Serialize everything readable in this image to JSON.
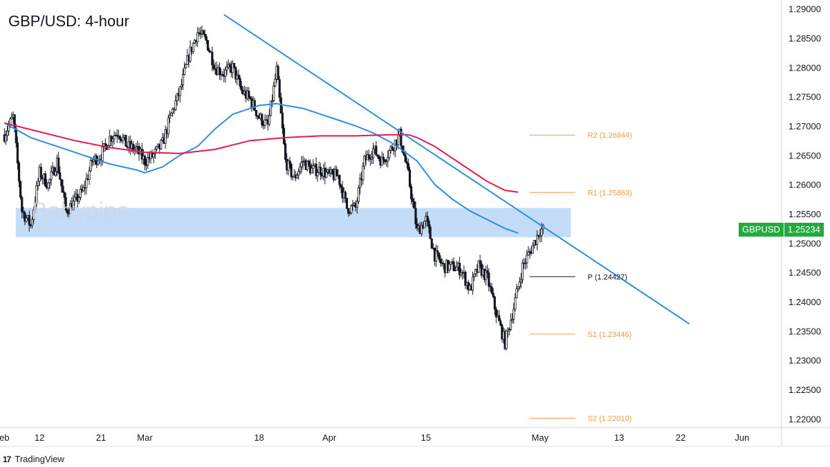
{
  "title": "GBP/USD: 4-hour",
  "watermark": "Babypips",
  "brand": {
    "logo": "17",
    "name": "TradingView"
  },
  "price_tag": {
    "symbol": "GBPUSD",
    "price": "1.25234",
    "color": "#22ab3c"
  },
  "colors": {
    "candle": "#131722",
    "trendline": "#2f8de0",
    "ma_fast": "#2f8de0",
    "ma_slow": "#e8174f",
    "zone": "#b8d6f7",
    "pivot_resistance": "#f39b4c",
    "pivot_support": "#f39b4c",
    "pivot": "#131722"
  },
  "chart_data": {
    "type": "candlestick",
    "title": "GBP/USD: 4-hour",
    "x_unit": "trading day (Feb 8, 2024 = 0)",
    "x_ticks": [
      {
        "x": 0,
        "label": "eb"
      },
      {
        "x": 4,
        "label": "12"
      },
      {
        "x": 11,
        "label": "21"
      },
      {
        "x": 16,
        "label": "Mar"
      },
      {
        "x": 29,
        "label": "18"
      },
      {
        "x": 37,
        "label": "Apr"
      },
      {
        "x": 48,
        "label": "15"
      },
      {
        "x": 61,
        "label": "May"
      },
      {
        "x": 70,
        "label": "13"
      },
      {
        "x": 77,
        "label": "22"
      },
      {
        "x": 84,
        "label": "Jun"
      }
    ],
    "xlim": [
      -0.5,
      88.5
    ],
    "ylim": [
      1.2185,
      1.2915
    ],
    "y_ticks": [
      1.29,
      1.285,
      1.28,
      1.275,
      1.27,
      1.265,
      1.26,
      1.255,
      1.25,
      1.245,
      1.24,
      1.235,
      1.23,
      1.225,
      1.22
    ],
    "candles_close_anchors": [
      [
        0,
        1.2685
      ],
      [
        1,
        1.2715
      ],
      [
        2,
        1.2555
      ],
      [
        3,
        1.253
      ],
      [
        4,
        1.262
      ],
      [
        5,
        1.26
      ],
      [
        6,
        1.264
      ],
      [
        7,
        1.2555
      ],
      [
        8,
        1.257
      ],
      [
        9,
        1.259
      ],
      [
        10,
        1.264
      ],
      [
        11,
        1.265
      ],
      [
        12,
        1.268
      ],
      [
        13,
        1.269
      ],
      [
        14,
        1.2665
      ],
      [
        15,
        1.266
      ],
      [
        16,
        1.264
      ],
      [
        17,
        1.265
      ],
      [
        18,
        1.267
      ],
      [
        19,
        1.272
      ],
      [
        20,
        1.276
      ],
      [
        21,
        1.282
      ],
      [
        22,
        1.286
      ],
      [
        23,
        1.2845
      ],
      [
        24,
        1.28
      ],
      [
        25,
        1.279
      ],
      [
        26,
        1.28
      ],
      [
        27,
        1.276
      ],
      [
        28,
        1.2745
      ],
      [
        29,
        1.2715
      ],
      [
        30,
        1.27
      ],
      [
        31,
        1.2795
      ],
      [
        32,
        1.264
      ],
      [
        33,
        1.261
      ],
      [
        34,
        1.264
      ],
      [
        35,
        1.2625
      ],
      [
        36,
        1.2625
      ],
      [
        37,
        1.2615
      ],
      [
        38,
        1.2615
      ],
      [
        39,
        1.256
      ],
      [
        40,
        1.256
      ],
      [
        41,
        1.264
      ],
      [
        42,
        1.266
      ],
      [
        43,
        1.264
      ],
      [
        44,
        1.266
      ],
      [
        45,
        1.2685
      ],
      [
        46,
        1.2615
      ],
      [
        47,
        1.252
      ],
      [
        48,
        1.254
      ],
      [
        49,
        1.248
      ],
      [
        50,
        1.246
      ],
      [
        51,
        1.246
      ],
      [
        52,
        1.2455
      ],
      [
        53,
        1.242
      ],
      [
        54,
        1.246
      ],
      [
        55,
        1.244
      ],
      [
        56,
        1.238
      ],
      [
        57,
        1.233
      ],
      [
        58,
        1.239
      ],
      [
        59,
        1.246
      ],
      [
        60,
        1.249
      ],
      [
        61,
        1.2523
      ]
    ],
    "last_price": 1.25234,
    "series": [
      {
        "name": "",
        "kind": "moving-average-fast",
        "color": "#2f8de0",
        "x": [
          0,
          3,
          6,
          9,
          12,
          15,
          16,
          18,
          20,
          22,
          24,
          26,
          29,
          31,
          32,
          34,
          36,
          38,
          40,
          42,
          44,
          45,
          47,
          49,
          51,
          53,
          55,
          57,
          58.5
        ],
        "y": [
          1.2705,
          1.268,
          1.2665,
          1.265,
          1.2635,
          1.2625,
          1.262,
          1.263,
          1.265,
          1.2665,
          1.2695,
          1.272,
          1.2735,
          1.2738,
          1.2735,
          1.273,
          1.272,
          1.271,
          1.27,
          1.2688,
          1.2672,
          1.2662,
          1.264,
          1.26,
          1.2575,
          1.2555,
          1.254,
          1.2525,
          1.2517
        ]
      },
      {
        "name": "",
        "kind": "moving-average-slow",
        "color": "#e8174f",
        "x": [
          0,
          4,
          8,
          12,
          16,
          20,
          24,
          28,
          32,
          36,
          40,
          44,
          46,
          47,
          49,
          51,
          53,
          55,
          57,
          58.5
        ],
        "y": [
          1.2705,
          1.269,
          1.2675,
          1.2663,
          1.2655,
          1.2653,
          1.266,
          1.2675,
          1.268,
          1.2683,
          1.2683,
          1.2685,
          1.2685,
          1.268,
          1.2665,
          1.2645,
          1.2625,
          1.2605,
          1.259,
          1.2587
        ]
      }
    ],
    "trendline": {
      "x": [
        25,
        78
      ],
      "y": [
        1.289,
        1.2362
      ]
    },
    "zone": {
      "x": [
        1.3,
        64.5
      ],
      "y": [
        1.251,
        1.256
      ]
    },
    "pivot_levels": [
      {
        "label": "R2 (1.26844)",
        "value": 1.26844
      },
      {
        "label": "R1 (1.25863)",
        "value": 1.25863
      },
      {
        "label": "P (1.24427)",
        "value": 1.24427
      },
      {
        "label": "S1 (1.23446)",
        "value": 1.23446
      },
      {
        "label": "S2 (1.22010)",
        "value": 1.2201
      }
    ],
    "pivot_x_range": [
      59.8,
      65
    ],
    "grid": false,
    "legend": "none"
  }
}
